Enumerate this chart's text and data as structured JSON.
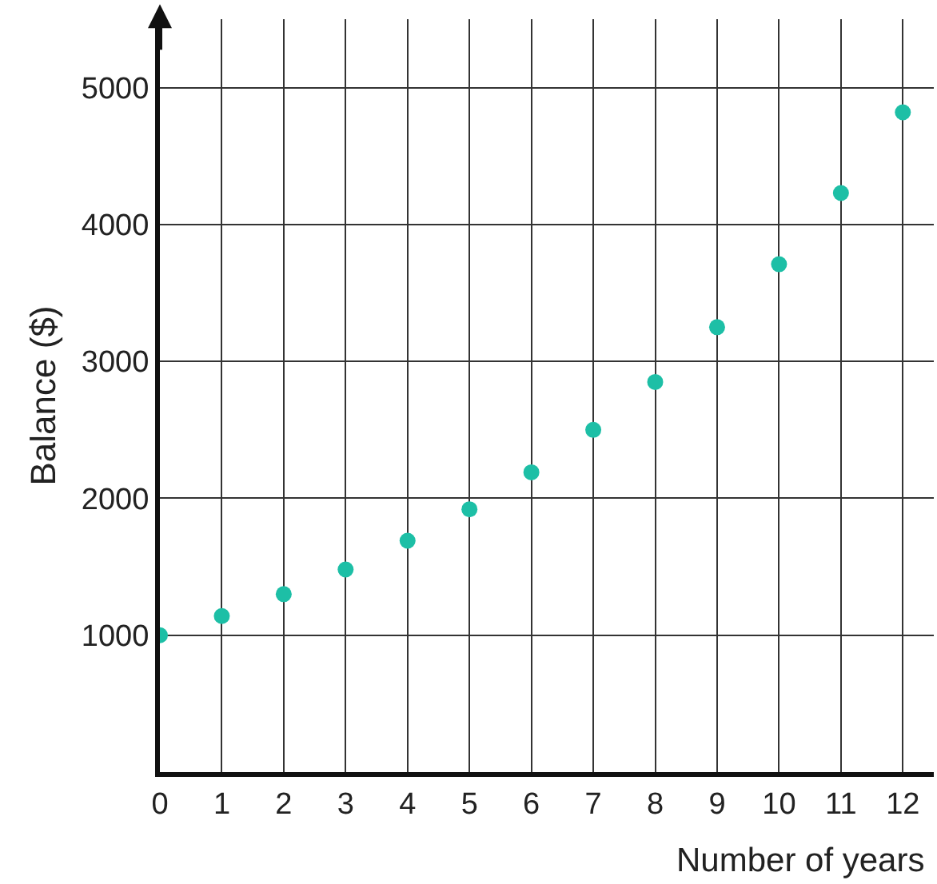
{
  "chart_data": {
    "type": "scatter",
    "xlabel": "Number of years",
    "ylabel": "Balance ($)",
    "x": [
      0,
      1,
      2,
      3,
      4,
      5,
      6,
      7,
      8,
      9,
      10,
      11,
      12
    ],
    "series": [
      {
        "color": "#1dbfa6",
        "values": [
          1000,
          1140,
          1300,
          1480,
          1690,
          1920,
          2190,
          2500,
          2850,
          3250,
          3710,
          4230,
          4820
        ]
      }
    ],
    "xlim": [
      0,
      12.5
    ],
    "ylim": [
      0,
      5500
    ],
    "xticks": [
      0,
      1,
      2,
      3,
      4,
      5,
      6,
      7,
      8,
      9,
      10,
      11,
      12
    ],
    "yticks": [
      1000,
      2000,
      3000,
      4000,
      5000
    ],
    "grid": true,
    "marker": "circle"
  }
}
